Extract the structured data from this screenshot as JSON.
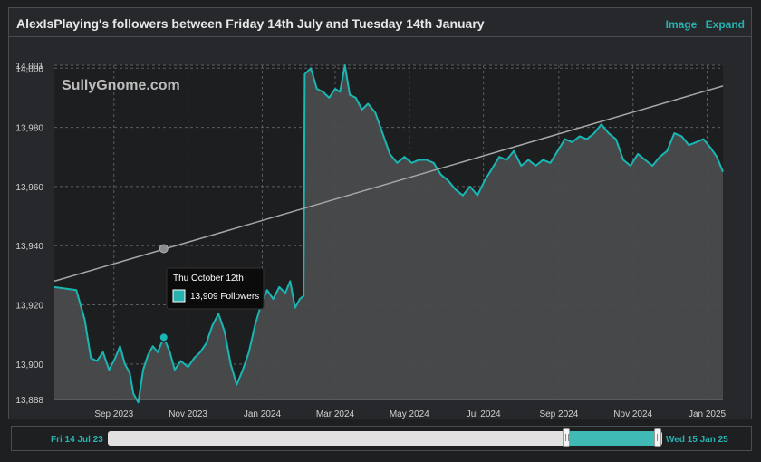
{
  "header": {
    "title": "AlexIsPlaying's followers between Friday 14th July and Tuesday 14th January",
    "image_label": "Image",
    "expand_label": "Expand"
  },
  "watermark": "SullyGnome.com",
  "tooltip": {
    "date": "Thu October 12th",
    "value_text": "13,909 Followers",
    "swatch_color": "#27b2b0"
  },
  "navigator": {
    "start_label": "Fri 14 Jul 23",
    "end_label": "Wed 15 Jan 25"
  },
  "colors": {
    "accent": "#27b2b0",
    "line": "#18b7b4",
    "area": "#4a4b4d",
    "trend": "#a6a6a6"
  },
  "chart_data": {
    "type": "area",
    "title": "AlexIsPlaying's followers between Friday 14th July and Tuesday 14th January",
    "ylim": [
      13888,
      14001
    ],
    "xlim": [
      "2023-07-14",
      "2025-01-14"
    ],
    "y_ticks": [
      "13,888",
      "13,900",
      "13,920",
      "13,940",
      "13,960",
      "13,980",
      "14,000",
      "14,001"
    ],
    "x_ticks": [
      {
        "date": "2023-09-01",
        "label": "Sep 2023"
      },
      {
        "date": "2023-11-01",
        "label": "Nov 2023"
      },
      {
        "date": "2024-01-01",
        "label": "Jan 2024"
      },
      {
        "date": "2024-03-01",
        "label": "Mar 2024"
      },
      {
        "date": "2024-05-01",
        "label": "May 2024"
      },
      {
        "date": "2024-07-01",
        "label": "Jul 2024"
      },
      {
        "date": "2024-09-01",
        "label": "Sep 2024"
      },
      {
        "date": "2024-11-01",
        "label": "Nov 2024"
      },
      {
        "date": "2025-01-01",
        "label": "Jan 2025"
      }
    ],
    "grid": true,
    "series": [
      {
        "points": [
          [
            "2023-07-14",
            13926
          ],
          [
            "2023-08-01",
            13925
          ],
          [
            "2023-08-08",
            13915
          ],
          [
            "2023-08-13",
            13902
          ],
          [
            "2023-08-18",
            13901
          ],
          [
            "2023-08-23",
            13904
          ],
          [
            "2023-08-28",
            13898
          ],
          [
            "2023-09-02",
            13902
          ],
          [
            "2023-09-06",
            13906
          ],
          [
            "2023-09-10",
            13900
          ],
          [
            "2023-09-14",
            13897
          ],
          [
            "2023-09-17",
            13890
          ],
          [
            "2023-09-21",
            13887
          ],
          [
            "2023-09-25",
            13898
          ],
          [
            "2023-09-29",
            13903
          ],
          [
            "2023-10-03",
            13906
          ],
          [
            "2023-10-07",
            13904
          ],
          [
            "2023-10-12",
            13909
          ],
          [
            "2023-10-17",
            13904
          ],
          [
            "2023-10-21",
            13898
          ],
          [
            "2023-10-26",
            13901
          ],
          [
            "2023-11-01",
            13899
          ],
          [
            "2023-11-06",
            13902
          ],
          [
            "2023-11-11",
            13904
          ],
          [
            "2023-11-16",
            13907
          ],
          [
            "2023-11-21",
            13913
          ],
          [
            "2023-11-26",
            13917
          ],
          [
            "2023-12-01",
            13911
          ],
          [
            "2023-12-06",
            13900
          ],
          [
            "2023-12-11",
            13893
          ],
          [
            "2023-12-16",
            13898
          ],
          [
            "2023-12-21",
            13904
          ],
          [
            "2023-12-26",
            13913
          ],
          [
            "2023-12-31",
            13920
          ],
          [
            "2024-01-05",
            13925
          ],
          [
            "2024-01-10",
            13922
          ],
          [
            "2024-01-15",
            13926
          ],
          [
            "2024-01-20",
            13924
          ],
          [
            "2024-01-24",
            13928
          ],
          [
            "2024-01-28",
            13919
          ],
          [
            "2024-02-01",
            13922
          ],
          [
            "2024-02-04",
            13923
          ],
          [
            "2024-02-05",
            13998
          ],
          [
            "2024-02-10",
            14000
          ],
          [
            "2024-02-15",
            13993
          ],
          [
            "2024-02-20",
            13992
          ],
          [
            "2024-02-25",
            13990
          ],
          [
            "2024-03-01",
            13993
          ],
          [
            "2024-03-05",
            13992
          ],
          [
            "2024-03-09",
            14001
          ],
          [
            "2024-03-13",
            13991
          ],
          [
            "2024-03-18",
            13990
          ],
          [
            "2024-03-23",
            13986
          ],
          [
            "2024-03-28",
            13988
          ],
          [
            "2024-04-03",
            13985
          ],
          [
            "2024-04-09",
            13978
          ],
          [
            "2024-04-15",
            13971
          ],
          [
            "2024-04-21",
            13968
          ],
          [
            "2024-04-27",
            13970
          ],
          [
            "2024-05-03",
            13968
          ],
          [
            "2024-05-09",
            13969
          ],
          [
            "2024-05-15",
            13969
          ],
          [
            "2024-05-21",
            13968
          ],
          [
            "2024-05-27",
            13964
          ],
          [
            "2024-06-02",
            13962
          ],
          [
            "2024-06-08",
            13959
          ],
          [
            "2024-06-14",
            13957
          ],
          [
            "2024-06-20",
            13960
          ],
          [
            "2024-06-26",
            13957
          ],
          [
            "2024-07-02",
            13962
          ],
          [
            "2024-07-08",
            13966
          ],
          [
            "2024-07-14",
            13970
          ],
          [
            "2024-07-20",
            13969
          ],
          [
            "2024-07-26",
            13972
          ],
          [
            "2024-08-01",
            13967
          ],
          [
            "2024-08-07",
            13969
          ],
          [
            "2024-08-13",
            13967
          ],
          [
            "2024-08-19",
            13969
          ],
          [
            "2024-08-25",
            13968
          ],
          [
            "2024-08-31",
            13972
          ],
          [
            "2024-09-06",
            13976
          ],
          [
            "2024-09-12",
            13975
          ],
          [
            "2024-09-18",
            13977
          ],
          [
            "2024-09-24",
            13976
          ],
          [
            "2024-09-30",
            13978
          ],
          [
            "2024-10-06",
            13981
          ],
          [
            "2024-10-12",
            13978
          ],
          [
            "2024-10-18",
            13976
          ],
          [
            "2024-10-24",
            13969
          ],
          [
            "2024-10-30",
            13967
          ],
          [
            "2024-11-05",
            13971
          ],
          [
            "2024-11-11",
            13969
          ],
          [
            "2024-11-17",
            13967
          ],
          [
            "2024-11-23",
            13970
          ],
          [
            "2024-11-29",
            13972
          ],
          [
            "2024-12-05",
            13978
          ],
          [
            "2024-12-11",
            13977
          ],
          [
            "2024-12-17",
            13974
          ],
          [
            "2024-12-23",
            13975
          ],
          [
            "2024-12-29",
            13976
          ],
          [
            "2025-01-04",
            13973
          ],
          [
            "2025-01-09",
            13970
          ],
          [
            "2025-01-14",
            13965
          ]
        ]
      },
      {
        "points": [
          [
            "2023-07-14",
            13928
          ],
          [
            "2025-01-14",
            13994
          ]
        ]
      }
    ],
    "marker": {
      "date": "2023-10-12",
      "value": 13909
    },
    "trend_marker": {
      "date": "2023-10-12",
      "value": 13939
    }
  }
}
